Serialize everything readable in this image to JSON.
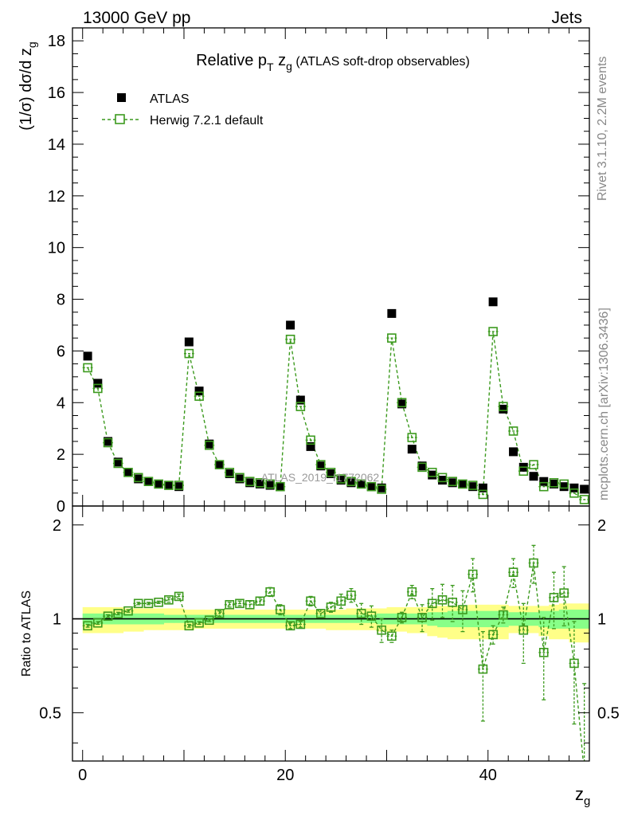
{
  "header": {
    "energy_label": "13000 GeV pp",
    "category_label": "Jets"
  },
  "side_labels": {
    "rivet": "Rivet 3.1.10,  2.2M events",
    "mcplots": "mcplots.cern.ch [arXiv:1306.3436]"
  },
  "watermark": "ATLAS_2019_I1772062",
  "colors": {
    "data": "#000000",
    "mc": "#3c9a1e",
    "band_outer": "#ffff88",
    "band_inner": "#88ff88"
  },
  "chart_data": [
    {
      "type": "scatter",
      "panel": "main",
      "title": "Relative p_T z_g (ATLAS soft-drop observables)",
      "title_parts": {
        "main": "Relative p",
        "sub": "T",
        "mid": " z",
        "sub2": "g",
        "rest": " (ATLAS soft-drop observables)"
      },
      "ylabel": "(1/σ) dσ/d z_g",
      "ylabel_parts": {
        "main": "(1/σ) dσ/d z",
        "sub": "g"
      },
      "xlabel": "z_g",
      "xlabel_parts": {
        "main": "z",
        "sub": "g"
      },
      "xlim": [
        -1,
        50
      ],
      "ylim": [
        0,
        18.5
      ],
      "x_ticks": [
        0,
        20,
        40
      ],
      "y_ticks": [
        0,
        2,
        4,
        6,
        8,
        10,
        12,
        14,
        16,
        18
      ],
      "x": [
        0.5,
        1.5,
        2.5,
        3.5,
        4.5,
        5.5,
        6.5,
        7.5,
        8.5,
        9.5,
        10.5,
        11.5,
        12.5,
        13.5,
        14.5,
        15.5,
        16.5,
        17.5,
        18.5,
        19.5,
        20.5,
        21.5,
        22.5,
        23.5,
        24.5,
        25.5,
        26.5,
        27.5,
        28.5,
        29.5,
        30.5,
        31.5,
        32.5,
        33.5,
        34.5,
        35.5,
        36.5,
        37.5,
        38.5,
        39.5,
        40.5,
        41.5,
        42.5,
        43.5,
        44.5,
        45.5,
        46.5,
        47.5,
        48.5,
        49.5
      ],
      "legend": [
        {
          "name": "ATLAS",
          "marker": "filled-square"
        },
        {
          "name": "Herwig 7.2.1 default",
          "marker": "open-square-dashed"
        }
      ],
      "series": [
        {
          "name": "ATLAS",
          "values": [
            5.8,
            4.75,
            2.5,
            1.7,
            1.3,
            1.05,
            0.95,
            0.85,
            0.8,
            0.75,
            6.35,
            4.45,
            2.4,
            1.6,
            1.25,
            1.05,
            0.9,
            0.85,
            0.8,
            0.75,
            7.0,
            4.1,
            2.3,
            1.55,
            1.25,
            1.0,
            0.9,
            0.85,
            0.75,
            0.7,
            7.45,
            3.95,
            2.2,
            1.55,
            1.2,
            1.0,
            0.9,
            0.85,
            0.75,
            0.7,
            7.9,
            3.75,
            2.1,
            1.5,
            1.15,
            0.95,
            0.85,
            0.75,
            0.7,
            0.65
          ]
        },
        {
          "name": "Herwig 7.2.1 default",
          "values": [
            5.35,
            4.55,
            2.45,
            1.65,
            1.3,
            1.1,
            0.95,
            0.85,
            0.8,
            0.8,
            5.9,
            4.25,
            2.35,
            1.6,
            1.3,
            1.1,
            0.95,
            0.9,
            0.85,
            0.75,
            6.45,
            3.85,
            2.55,
            1.6,
            1.3,
            1.05,
            0.95,
            0.85,
            0.75,
            0.65,
            6.5,
            4.0,
            2.65,
            1.5,
            1.3,
            1.1,
            0.95,
            0.85,
            0.8,
            0.45,
            6.75,
            3.85,
            2.9,
            1.35,
            1.6,
            0.75,
            0.9,
            0.85,
            0.5,
            0.25
          ]
        }
      ]
    },
    {
      "type": "scatter",
      "panel": "ratio",
      "ylabel": "Ratio to ATLAS",
      "xlim": [
        -1,
        50
      ],
      "ylim": [
        0.35,
        2.3
      ],
      "y_ticks": [
        0.5,
        1,
        2
      ],
      "x_ticks": [
        0,
        20,
        40
      ],
      "x_tick_labels": [
        "0",
        "20",
        "40"
      ],
      "x": [
        0.5,
        1.5,
        2.5,
        3.5,
        4.5,
        5.5,
        6.5,
        7.5,
        8.5,
        9.5,
        10.5,
        11.5,
        12.5,
        13.5,
        14.5,
        15.5,
        16.5,
        17.5,
        18.5,
        19.5,
        20.5,
        21.5,
        22.5,
        23.5,
        24.5,
        25.5,
        26.5,
        27.5,
        28.5,
        29.5,
        30.5,
        31.5,
        32.5,
        33.5,
        34.5,
        35.5,
        36.5,
        37.5,
        38.5,
        39.5,
        40.5,
        41.5,
        42.5,
        43.5,
        44.5,
        45.5,
        46.5,
        47.5,
        48.5,
        49.5
      ],
      "band_outer_lo": [
        0.9,
        0.9,
        0.9,
        0.9,
        0.91,
        0.91,
        0.92,
        0.92,
        0.92,
        0.92,
        0.92,
        0.93,
        0.93,
        0.93,
        0.93,
        0.93,
        0.93,
        0.93,
        0.93,
        0.93,
        0.93,
        0.93,
        0.93,
        0.93,
        0.92,
        0.92,
        0.92,
        0.92,
        0.92,
        0.91,
        0.91,
        0.91,
        0.9,
        0.9,
        0.88,
        0.87,
        0.86,
        0.86,
        0.86,
        0.86,
        0.86,
        0.86,
        0.9,
        0.9,
        0.9,
        0.88,
        0.86,
        0.86,
        0.84,
        0.84
      ],
      "band_outer_hi": [
        1.09,
        1.09,
        1.09,
        1.09,
        1.08,
        1.08,
        1.08,
        1.08,
        1.08,
        1.08,
        1.07,
        1.07,
        1.07,
        1.07,
        1.07,
        1.07,
        1.07,
        1.07,
        1.07,
        1.07,
        1.07,
        1.07,
        1.07,
        1.07,
        1.07,
        1.07,
        1.08,
        1.08,
        1.08,
        1.08,
        1.09,
        1.09,
        1.09,
        1.09,
        1.1,
        1.1,
        1.1,
        1.1,
        1.11,
        1.11,
        1.11,
        1.11,
        1.1,
        1.1,
        1.1,
        1.1,
        1.11,
        1.12,
        1.12,
        1.12
      ],
      "band_inner_lo": [
        0.96,
        0.96,
        0.96,
        0.96,
        0.96,
        0.96,
        0.96,
        0.96,
        0.97,
        0.97,
        0.97,
        0.97,
        0.97,
        0.97,
        0.97,
        0.97,
        0.97,
        0.97,
        0.97,
        0.97,
        0.97,
        0.97,
        0.97,
        0.97,
        0.97,
        0.97,
        0.97,
        0.97,
        0.97,
        0.96,
        0.96,
        0.96,
        0.96,
        0.96,
        0.95,
        0.94,
        0.94,
        0.94,
        0.94,
        0.94,
        0.94,
        0.94,
        0.95,
        0.95,
        0.95,
        0.94,
        0.93,
        0.93,
        0.93,
        0.93
      ],
      "band_inner_hi": [
        1.04,
        1.04,
        1.04,
        1.04,
        1.04,
        1.04,
        1.04,
        1.04,
        1.03,
        1.03,
        1.03,
        1.03,
        1.03,
        1.03,
        1.03,
        1.03,
        1.03,
        1.03,
        1.03,
        1.03,
        1.03,
        1.03,
        1.03,
        1.03,
        1.03,
        1.03,
        1.03,
        1.03,
        1.03,
        1.04,
        1.04,
        1.04,
        1.04,
        1.04,
        1.05,
        1.05,
        1.06,
        1.06,
        1.06,
        1.06,
        1.06,
        1.06,
        1.05,
        1.05,
        1.05,
        1.06,
        1.06,
        1.07,
        1.07,
        1.07
      ],
      "series": [
        {
          "name": "Herwig 7.2.1 default",
          "values": [
            0.95,
            0.97,
            1.02,
            1.04,
            1.06,
            1.12,
            1.12,
            1.13,
            1.15,
            1.18,
            0.95,
            0.97,
            0.99,
            1.04,
            1.11,
            1.12,
            1.11,
            1.14,
            1.22,
            1.07,
            0.95,
            0.96,
            1.14,
            1.04,
            1.09,
            1.14,
            1.19,
            1.04,
            1.02,
            0.92,
            0.88,
            1.01,
            1.22,
            1.01,
            1.12,
            1.15,
            1.13,
            1.07,
            1.39,
            0.69,
            0.89,
            1.03,
            1.41,
            0.92,
            1.51,
            0.78,
            1.17,
            1.21,
            0.72,
            0.32
          ],
          "err_lo": [
            0.01,
            0.01,
            0.01,
            0.01,
            0.01,
            0.01,
            0.01,
            0.01,
            0.02,
            0.02,
            0.01,
            0.01,
            0.01,
            0.02,
            0.02,
            0.02,
            0.03,
            0.03,
            0.04,
            0.04,
            0.02,
            0.02,
            0.04,
            0.03,
            0.04,
            0.06,
            0.06,
            0.08,
            0.08,
            0.08,
            0.04,
            0.04,
            0.06,
            0.1,
            0.13,
            0.14,
            0.15,
            0.16,
            0.17,
            0.22,
            0.06,
            0.06,
            0.15,
            0.2,
            0.21,
            0.23,
            0.24,
            0.26,
            0.26,
            0.3
          ],
          "err_hi": [
            0.01,
            0.01,
            0.01,
            0.01,
            0.01,
            0.01,
            0.01,
            0.01,
            0.02,
            0.02,
            0.01,
            0.01,
            0.01,
            0.02,
            0.02,
            0.02,
            0.03,
            0.03,
            0.04,
            0.04,
            0.02,
            0.02,
            0.04,
            0.03,
            0.04,
            0.06,
            0.06,
            0.08,
            0.08,
            0.08,
            0.04,
            0.04,
            0.06,
            0.1,
            0.13,
            0.14,
            0.15,
            0.16,
            0.17,
            0.22,
            0.06,
            0.06,
            0.15,
            0.2,
            0.21,
            0.23,
            0.24,
            0.26,
            0.26,
            0.3
          ]
        }
      ]
    }
  ]
}
